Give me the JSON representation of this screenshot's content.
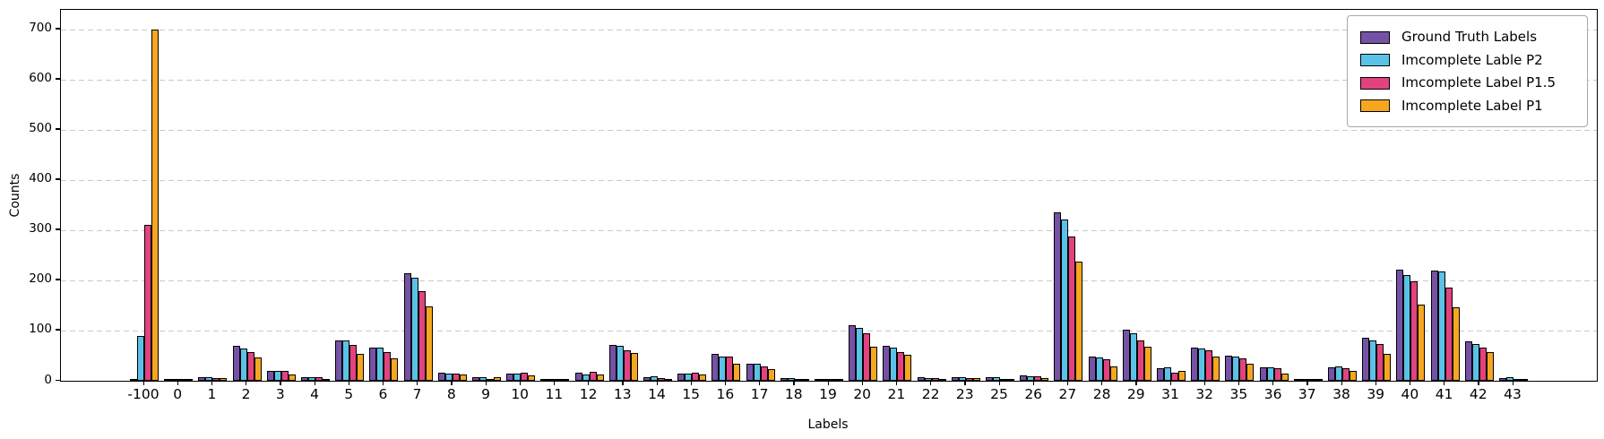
{
  "figure": {
    "background": "#ffffff",
    "grid_color": "#c9c9c9",
    "spine_color": "#000000",
    "bar_edge_color": "#000000"
  },
  "chart_data": {
    "type": "bar",
    "title": "",
    "xlabel": "Labels",
    "ylabel": "Counts",
    "grid": "horizontal-dashed",
    "legend_position": "upper-right",
    "ylim": [
      0,
      739
    ],
    "yticks": [
      0,
      100,
      200,
      300,
      400,
      500,
      600,
      700
    ],
    "categories": [
      "-100",
      "0",
      "1",
      "2",
      "3",
      "4",
      "5",
      "6",
      "7",
      "8",
      "9",
      "10",
      "11",
      "12",
      "13",
      "14",
      "15",
      "16",
      "17",
      "18",
      "19",
      "20",
      "21",
      "22",
      "23",
      "25",
      "26",
      "27",
      "28",
      "29",
      "31",
      "32",
      "35",
      "36",
      "37",
      "38",
      "39",
      "40",
      "41",
      "42",
      "43"
    ],
    "series": [
      {
        "name": "Ground Truth Labels",
        "color": "#7552a5",
        "values": [
          1,
          3,
          7,
          70,
          20,
          7,
          80,
          66,
          215,
          17,
          7,
          15,
          3,
          17,
          71,
          8,
          15,
          53,
          34,
          5,
          2,
          110,
          69,
          7,
          8,
          7,
          11,
          335,
          49,
          102,
          25,
          67,
          50,
          27,
          2,
          27,
          85,
          222,
          220,
          79,
          6
        ]
      },
      {
        "name": "Imcomplete Lable P2",
        "color": "#5bc2e7",
        "values": [
          90,
          3,
          8,
          65,
          20,
          8,
          80,
          66,
          205,
          14,
          7,
          14,
          2,
          13,
          69,
          9,
          15,
          49,
          34,
          6,
          2,
          105,
          67,
          6,
          8,
          7,
          9,
          322,
          47,
          94,
          26,
          65,
          48,
          27,
          2,
          28,
          81,
          211,
          217,
          73,
          7
        ]
      },
      {
        "name": "Imcomplete Label P1.5",
        "color": "#e2437e",
        "values": [
          310,
          2,
          5,
          58,
          20,
          8,
          72,
          58,
          178,
          15,
          4,
          16,
          2,
          18,
          60,
          6,
          16,
          48,
          29,
          3,
          2,
          94,
          57,
          6,
          6,
          4,
          9,
          288,
          43,
          80,
          17,
          60,
          44,
          25,
          1,
          25,
          74,
          198,
          185,
          66,
          4
        ]
      },
      {
        "name": "Imcomplete Label P1",
        "color": "#f6a71f",
        "values": [
          700,
          2,
          5,
          46,
          13,
          4,
          54,
          44,
          148,
          13,
          7,
          10,
          2,
          12,
          56,
          3,
          12,
          34,
          24,
          2,
          1,
          68,
          51,
          2,
          5,
          4,
          6,
          237,
          29,
          68,
          20,
          49,
          34,
          15,
          1,
          19,
          53,
          151,
          147,
          57,
          2
        ]
      }
    ]
  }
}
